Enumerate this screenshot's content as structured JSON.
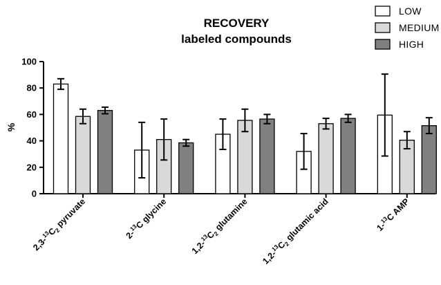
{
  "chart_data": {
    "type": "bar",
    "title": "RECOVERY",
    "subtitle": "labeled compounds",
    "xlabel": "",
    "ylabel": "%",
    "ylim": [
      0,
      100
    ],
    "yticks": [
      0,
      20,
      40,
      60,
      80,
      100
    ],
    "grid": false,
    "legend_position": "top-right",
    "categories": [
      {
        "pre": "2,3-",
        "sup": "13",
        "mid": "C",
        "sub": "2",
        "post": " pyruvate"
      },
      {
        "pre": "2-",
        "sup": "13",
        "mid": "C glycine",
        "sub": "",
        "post": ""
      },
      {
        "pre": "1,2-",
        "sup": "13",
        "mid": "C",
        "sub": "2",
        "post": " glutamine"
      },
      {
        "pre": "1,2-",
        "sup": "13",
        "mid": "C",
        "sub": "2",
        "post": " glutamic acid"
      },
      {
        "pre": "1-",
        "sup": "13",
        "mid": "C AMP",
        "sub": "",
        "post": ""
      }
    ],
    "series": [
      {
        "name": "LOW",
        "color": "#ffffff",
        "values": [
          83,
          33,
          45,
          32,
          59.5
        ],
        "errors": [
          4,
          21,
          11.5,
          13.5,
          31
        ]
      },
      {
        "name": "MEDIUM",
        "color": "#d9d9d9",
        "values": [
          58.5,
          41,
          55.5,
          53,
          40.5
        ],
        "errors": [
          5.5,
          15.5,
          8.5,
          4,
          6.5
        ]
      },
      {
        "name": "HIGH",
        "color": "#808080",
        "values": [
          63,
          38.5,
          56.5,
          57,
          51.5
        ],
        "errors": [
          2.5,
          2.5,
          3.5,
          3,
          6
        ]
      }
    ]
  }
}
